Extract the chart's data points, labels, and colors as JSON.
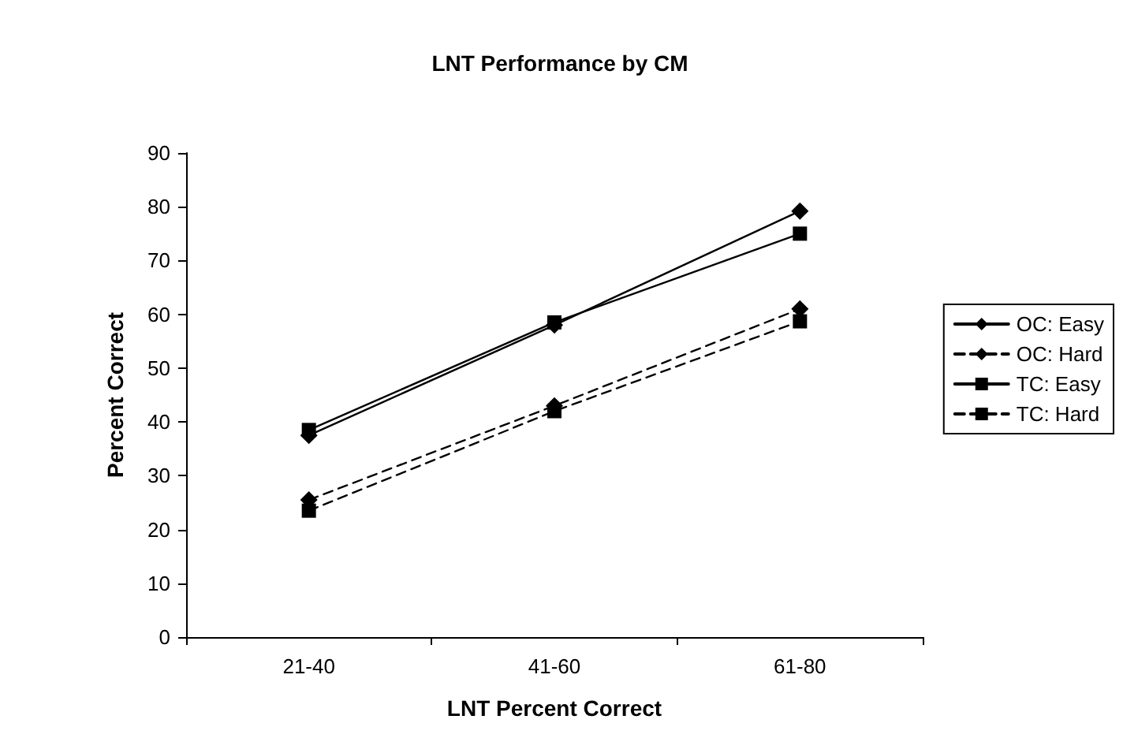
{
  "chart_data": {
    "type": "line",
    "title": "LNT Performance by CM",
    "xlabel": "LNT Percent Correct",
    "ylabel": "Percent Correct",
    "categories": [
      "21-40",
      "41-60",
      "61-80"
    ],
    "series": [
      {
        "name": "OC: Easy",
        "color": "#000000",
        "marker": "diamond",
        "line_style": "solid",
        "values": [
          37.5,
          58,
          79.2
        ]
      },
      {
        "name": "OC: Hard",
        "color": "#000000",
        "marker": "diamond",
        "line_style": "dashed",
        "values": [
          25.5,
          43,
          61
        ]
      },
      {
        "name": "TC: Easy",
        "color": "#000000",
        "marker": "square",
        "line_style": "solid",
        "values": [
          38.5,
          58.5,
          75
        ]
      },
      {
        "name": "TC: Hard",
        "color": "#000000",
        "marker": "square",
        "line_style": "dashed",
        "values": [
          23.5,
          42,
          58.7
        ]
      }
    ],
    "ylim": [
      0,
      90
    ],
    "yticks": [
      0,
      10,
      20,
      30,
      40,
      50,
      60,
      70,
      80,
      90
    ],
    "grid": false,
    "legend": "right"
  }
}
